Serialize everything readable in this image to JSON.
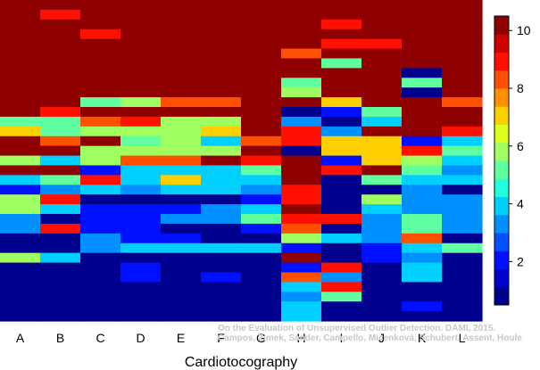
{
  "chart_data": {
    "type": "heatmap",
    "xlabel": "Cardiotocography",
    "ylabel": "",
    "x": [
      "A",
      "B",
      "C",
      "D",
      "E",
      "F",
      "G",
      "H",
      "I",
      "J",
      "K",
      "L"
    ],
    "rows": 33,
    "colorbar": {
      "ticks": [
        2,
        4,
        6,
        8,
        10
      ],
      "range": [
        0.5,
        10.5
      ],
      "colormap": "jet"
    },
    "values": [
      [
        10,
        10,
        10,
        10,
        10,
        10,
        10,
        10,
        10,
        10,
        10,
        10
      ],
      [
        10,
        9,
        10,
        10,
        10,
        10,
        10,
        10,
        10,
        10,
        10,
        10
      ],
      [
        10,
        10,
        10,
        10,
        10,
        10,
        10,
        10,
        9,
        10,
        10,
        10
      ],
      [
        10,
        10,
        9,
        10,
        10,
        10,
        10,
        10,
        10,
        10,
        10,
        10
      ],
      [
        10,
        10,
        10,
        10,
        10,
        10,
        10,
        10,
        9,
        9,
        10,
        10
      ],
      [
        10,
        10,
        10,
        10,
        10,
        10,
        10,
        8,
        10,
        10,
        10,
        10
      ],
      [
        10,
        10,
        10,
        10,
        10,
        10,
        10,
        10,
        5,
        10,
        10,
        10
      ],
      [
        10,
        10,
        10,
        10,
        10,
        10,
        10,
        10,
        10,
        10,
        1,
        10
      ],
      [
        10,
        10,
        10,
        10,
        10,
        10,
        10,
        5,
        10,
        10,
        5,
        10
      ],
      [
        10,
        10,
        10,
        10,
        10,
        10,
        10,
        6,
        10,
        10,
        1,
        10
      ],
      [
        10,
        10,
        5,
        6,
        8,
        8,
        10,
        10,
        7,
        10,
        10,
        8
      ],
      [
        10,
        9,
        10,
        10,
        10,
        10,
        10,
        1,
        2,
        5,
        10,
        10
      ],
      [
        5,
        5,
        8,
        9,
        6,
        6,
        10,
        3,
        1,
        4,
        10,
        10
      ],
      [
        7,
        5,
        6,
        6,
        6,
        7,
        10,
        9,
        3,
        10,
        10,
        9
      ],
      [
        10,
        8,
        10,
        5,
        6,
        4,
        8,
        9,
        7,
        7,
        2,
        4
      ],
      [
        10,
        10,
        6,
        6,
        6,
        6,
        10,
        1,
        7,
        7,
        9,
        5
      ],
      [
        6,
        4,
        6,
        8,
        8,
        10,
        9,
        10,
        2,
        7,
        6,
        4
      ],
      [
        10,
        10,
        2,
        4,
        4,
        4,
        5,
        10,
        9,
        10,
        5,
        3
      ],
      [
        4,
        5,
        9,
        4,
        7,
        4,
        4,
        10,
        1,
        5,
        4,
        4
      ],
      [
        2,
        3,
        4,
        3,
        4,
        4,
        3,
        9,
        1,
        1,
        3,
        1
      ],
      [
        6,
        9,
        1,
        1,
        1,
        1,
        2,
        9,
        1,
        6,
        3,
        3
      ],
      [
        6,
        4,
        2,
        2,
        2,
        3,
        4,
        10,
        1,
        4,
        3,
        3
      ],
      [
        3,
        1,
        2,
        2,
        3,
        3,
        5,
        9,
        9,
        3,
        5,
        3
      ],
      [
        3,
        9,
        2,
        2,
        1,
        1,
        2,
        8,
        1,
        3,
        5,
        3
      ],
      [
        1,
        1,
        3,
        2,
        2,
        1,
        1,
        6,
        4,
        3,
        8,
        1
      ],
      [
        1,
        1,
        3,
        4,
        4,
        4,
        4,
        2,
        1,
        2,
        4,
        5
      ],
      [
        6,
        4,
        1,
        1,
        1,
        1,
        1,
        10,
        1,
        2,
        3,
        1
      ],
      [
        1,
        1,
        1,
        2,
        1,
        1,
        1,
        2,
        9,
        1,
        4,
        1
      ],
      [
        1,
        1,
        1,
        2,
        1,
        2,
        1,
        8,
        3,
        1,
        4,
        1
      ],
      [
        1,
        1,
        1,
        1,
        1,
        1,
        1,
        4,
        9,
        1,
        1,
        1
      ],
      [
        1,
        1,
        1,
        1,
        1,
        1,
        1,
        3,
        5,
        1,
        1,
        1
      ],
      [
        1,
        1,
        1,
        1,
        1,
        1,
        1,
        4,
        1,
        1,
        2,
        1
      ],
      [
        1,
        1,
        1,
        1,
        1,
        1,
        1,
        4,
        1,
        1,
        1,
        1
      ]
    ]
  },
  "credit": {
    "line1": "On the Evaluation of Unsupervised Outlier Detection. DAMI, 2015.",
    "line2": "Campos, Zimek, Sander, Campello, Micenková, Schubert, Assent, Houle"
  }
}
